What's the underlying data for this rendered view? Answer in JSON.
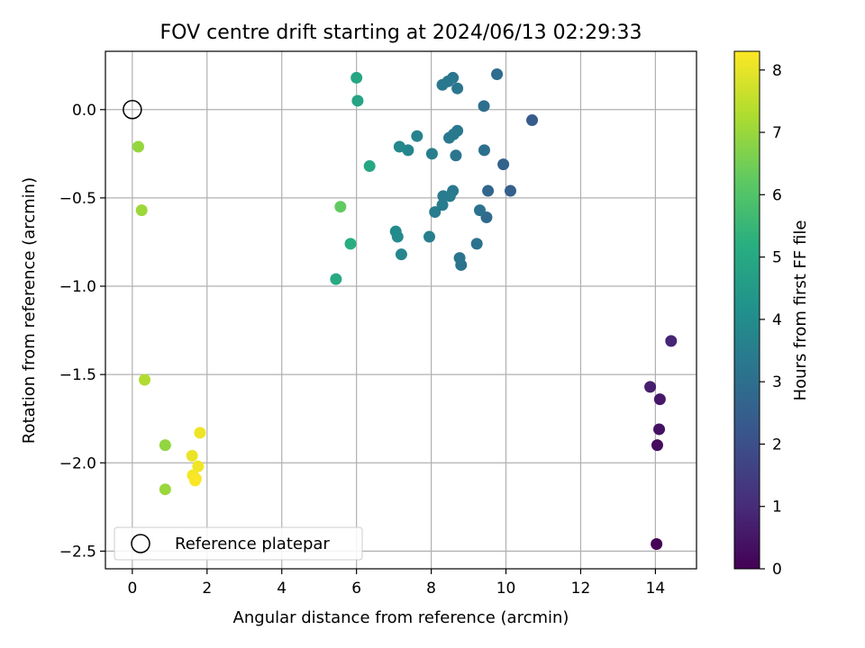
{
  "chart_data": {
    "type": "scatter",
    "title": "FOV centre drift starting at 2024/06/13 02:29:33",
    "xlabel": "Angular distance from reference (arcmin)",
    "ylabel": "Rotation from reference (arcmin)",
    "xlim": [
      -0.72,
      15.1
    ],
    "ylim": [
      -2.6,
      0.33
    ],
    "xticks": [
      0,
      2,
      4,
      6,
      8,
      10,
      12,
      14
    ],
    "xtick_labels": [
      "0",
      "2",
      "4",
      "6",
      "8",
      "10",
      "12",
      "14"
    ],
    "yticks": [
      0.0,
      -0.5,
      -1.0,
      -1.5,
      -2.0,
      -2.5
    ],
    "ytick_labels": [
      "0.0",
      "−0.5",
      "−1.0",
      "−1.5",
      "−2.0",
      "−2.5"
    ],
    "grid": true,
    "legend_position": "lower-left",
    "legend_label": "Reference platepar",
    "reference_point": [
      0.0,
      0.0
    ],
    "colorbar": {
      "label": "Hours from first FF file",
      "colormap": "viridis",
      "range": [
        0,
        8.3
      ],
      "ticks": [
        0,
        1,
        2,
        3,
        4,
        5,
        6,
        7,
        8
      ],
      "tick_labels": [
        "0",
        "1",
        "2",
        "3",
        "4",
        "5",
        "6",
        "7",
        "8"
      ]
    },
    "points": [
      {
        "x": 14.03,
        "y": -2.46,
        "hours": 0.05
      },
      {
        "x": 14.05,
        "y": -1.9,
        "hours": 0.25
      },
      {
        "x": 14.1,
        "y": -1.81,
        "hours": 0.4
      },
      {
        "x": 14.12,
        "y": -1.64,
        "hours": 0.55
      },
      {
        "x": 13.86,
        "y": -1.57,
        "hours": 0.7
      },
      {
        "x": 14.42,
        "y": -1.31,
        "hours": 0.85
      },
      {
        "x": 10.7,
        "y": -0.06,
        "hours": 2.4
      },
      {
        "x": 10.12,
        "y": -0.46,
        "hours": 2.5
      },
      {
        "x": 9.93,
        "y": -0.31,
        "hours": 2.6
      },
      {
        "x": 9.52,
        "y": -0.46,
        "hours": 2.75
      },
      {
        "x": 9.48,
        "y": -0.61,
        "hours": 2.85
      },
      {
        "x": 9.76,
        "y": 0.2,
        "hours": 2.95
      },
      {
        "x": 9.41,
        "y": 0.02,
        "hours": 3.0
      },
      {
        "x": 9.42,
        "y": -0.23,
        "hours": 3.05
      },
      {
        "x": 9.3,
        "y": -0.57,
        "hours": 3.1
      },
      {
        "x": 9.22,
        "y": -0.76,
        "hours": 3.1
      },
      {
        "x": 8.8,
        "y": -0.88,
        "hours": 3.15
      },
      {
        "x": 8.76,
        "y": -0.84,
        "hours": 3.2
      },
      {
        "x": 8.66,
        "y": -0.26,
        "hours": 3.2
      },
      {
        "x": 8.58,
        "y": 0.18,
        "hours": 3.25
      },
      {
        "x": 8.7,
        "y": 0.12,
        "hours": 3.25
      },
      {
        "x": 8.45,
        "y": 0.16,
        "hours": 3.3
      },
      {
        "x": 8.3,
        "y": 0.14,
        "hours": 3.3
      },
      {
        "x": 8.7,
        "y": -0.12,
        "hours": 3.3
      },
      {
        "x": 8.6,
        "y": -0.14,
        "hours": 3.35
      },
      {
        "x": 8.48,
        "y": -0.16,
        "hours": 3.35
      },
      {
        "x": 8.58,
        "y": -0.46,
        "hours": 3.35
      },
      {
        "x": 8.5,
        "y": -0.49,
        "hours": 3.4
      },
      {
        "x": 8.32,
        "y": -0.49,
        "hours": 3.4
      },
      {
        "x": 8.3,
        "y": -0.54,
        "hours": 3.45
      },
      {
        "x": 8.1,
        "y": -0.58,
        "hours": 3.45
      },
      {
        "x": 8.02,
        "y": -0.25,
        "hours": 3.5
      },
      {
        "x": 7.95,
        "y": -0.72,
        "hours": 3.55
      },
      {
        "x": 7.62,
        "y": -0.15,
        "hours": 3.65
      },
      {
        "x": 7.38,
        "y": -0.23,
        "hours": 3.75
      },
      {
        "x": 7.2,
        "y": -0.82,
        "hours": 3.8
      },
      {
        "x": 7.15,
        "y": -0.21,
        "hours": 3.85
      },
      {
        "x": 7.1,
        "y": -0.72,
        "hours": 3.9
      },
      {
        "x": 7.05,
        "y": -0.69,
        "hours": 3.95
      },
      {
        "x": 6.03,
        "y": 0.05,
        "hours": 4.8
      },
      {
        "x": 6.0,
        "y": 0.18,
        "hours": 4.9
      },
      {
        "x": 6.35,
        "y": -0.32,
        "hours": 4.95
      },
      {
        "x": 5.45,
        "y": -0.96,
        "hours": 5.0
      },
      {
        "x": 5.84,
        "y": -0.76,
        "hours": 5.2
      },
      {
        "x": 5.57,
        "y": -0.55,
        "hours": 6.25
      },
      {
        "x": 0.16,
        "y": -0.21,
        "hours": 6.95
      },
      {
        "x": 0.25,
        "y": -0.57,
        "hours": 7.05
      },
      {
        "x": 0.33,
        "y": -1.53,
        "hours": 7.3
      },
      {
        "x": 0.88,
        "y": -1.9,
        "hours": 6.9
      },
      {
        "x": 0.88,
        "y": -2.15,
        "hours": 7.0
      },
      {
        "x": 1.81,
        "y": -1.83,
        "hours": 8.1
      },
      {
        "x": 1.6,
        "y": -1.96,
        "hours": 8.05
      },
      {
        "x": 1.76,
        "y": -2.02,
        "hours": 8.15
      },
      {
        "x": 1.62,
        "y": -2.07,
        "hours": 8.2
      },
      {
        "x": 1.7,
        "y": -2.09,
        "hours": 8.2
      },
      {
        "x": 1.68,
        "y": -2.1,
        "hours": 8.25
      }
    ]
  }
}
